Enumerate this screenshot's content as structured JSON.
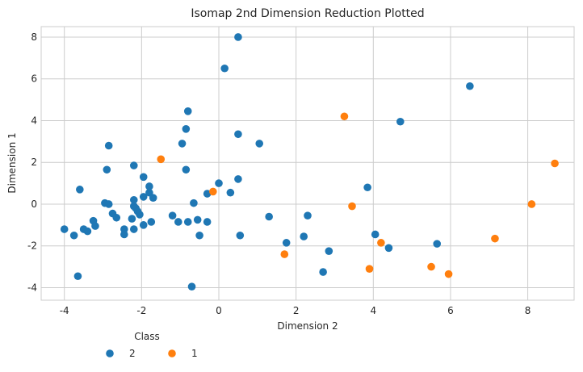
{
  "chart_data": {
    "type": "scatter",
    "title": "Isomap 2nd Dimension Reduction Plotted",
    "xlabel": "Dimension 2",
    "ylabel": "Dimension 1",
    "xlim": [
      -4.6,
      9.2
    ],
    "ylim": [
      -4.6,
      8.5
    ],
    "xticks": [
      -4,
      -2,
      0,
      2,
      4,
      6,
      8
    ],
    "yticks": [
      -4,
      -2,
      0,
      2,
      4,
      6,
      8
    ],
    "grid": true,
    "legend": {
      "title": "Class",
      "placement": "below-left"
    },
    "series": [
      {
        "name": "2",
        "color": "#1f77b4",
        "points": [
          [
            0.5,
            8.0
          ],
          [
            0.15,
            6.5
          ],
          [
            6.5,
            5.65
          ],
          [
            -0.8,
            4.45
          ],
          [
            4.7,
            3.95
          ],
          [
            -0.85,
            3.6
          ],
          [
            0.5,
            3.35
          ],
          [
            -0.95,
            2.9
          ],
          [
            1.05,
            2.9
          ],
          [
            -2.85,
            2.8
          ],
          [
            -2.2,
            1.85
          ],
          [
            -2.9,
            1.65
          ],
          [
            -0.85,
            1.65
          ],
          [
            -1.95,
            1.3
          ],
          [
            0.5,
            1.2
          ],
          [
            0.0,
            1.0
          ],
          [
            -1.8,
            0.85
          ],
          [
            3.85,
            0.8
          ],
          [
            -3.6,
            0.7
          ],
          [
            -1.8,
            0.55
          ],
          [
            0.3,
            0.55
          ],
          [
            -0.3,
            0.5
          ],
          [
            -1.95,
            0.35
          ],
          [
            -1.7,
            0.3
          ],
          [
            -2.2,
            0.2
          ],
          [
            -2.95,
            0.05
          ],
          [
            -2.85,
            0.0
          ],
          [
            -0.65,
            0.05
          ],
          [
            -2.2,
            -0.1
          ],
          [
            -2.15,
            -0.2
          ],
          [
            -2.1,
            -0.35
          ],
          [
            -2.75,
            -0.45
          ],
          [
            -2.05,
            -0.5
          ],
          [
            -1.2,
            -0.55
          ],
          [
            1.3,
            -0.6
          ],
          [
            2.3,
            -0.55
          ],
          [
            -2.65,
            -0.65
          ],
          [
            -2.25,
            -0.7
          ],
          [
            -0.55,
            -0.75
          ],
          [
            -3.25,
            -0.8
          ],
          [
            -1.75,
            -0.85
          ],
          [
            -1.05,
            -0.85
          ],
          [
            -0.8,
            -0.85
          ],
          [
            -0.3,
            -0.85
          ],
          [
            -3.2,
            -1.05
          ],
          [
            -1.95,
            -1.0
          ],
          [
            -4.0,
            -1.2
          ],
          [
            -3.5,
            -1.2
          ],
          [
            -3.4,
            -1.3
          ],
          [
            -2.45,
            -1.2
          ],
          [
            -2.2,
            -1.2
          ],
          [
            -3.75,
            -1.5
          ],
          [
            -2.45,
            -1.45
          ],
          [
            -0.5,
            -1.5
          ],
          [
            0.55,
            -1.5
          ],
          [
            2.2,
            -1.55
          ],
          [
            4.05,
            -1.45
          ],
          [
            1.75,
            -1.85
          ],
          [
            5.65,
            -1.9
          ],
          [
            4.4,
            -2.1
          ],
          [
            2.85,
            -2.25
          ],
          [
            2.7,
            -3.25
          ],
          [
            -3.65,
            -3.45
          ],
          [
            -0.7,
            -3.95
          ]
        ]
      },
      {
        "name": "1",
        "color": "#ff7f0e",
        "points": [
          [
            3.25,
            4.2
          ],
          [
            -1.5,
            2.15
          ],
          [
            8.7,
            1.95
          ],
          [
            -0.15,
            0.6
          ],
          [
            8.1,
            0.0
          ],
          [
            3.45,
            -0.1
          ],
          [
            7.15,
            -1.65
          ],
          [
            4.2,
            -1.85
          ],
          [
            1.7,
            -2.4
          ],
          [
            3.9,
            -3.1
          ],
          [
            5.5,
            -3.0
          ],
          [
            5.95,
            -3.35
          ]
        ]
      }
    ]
  }
}
